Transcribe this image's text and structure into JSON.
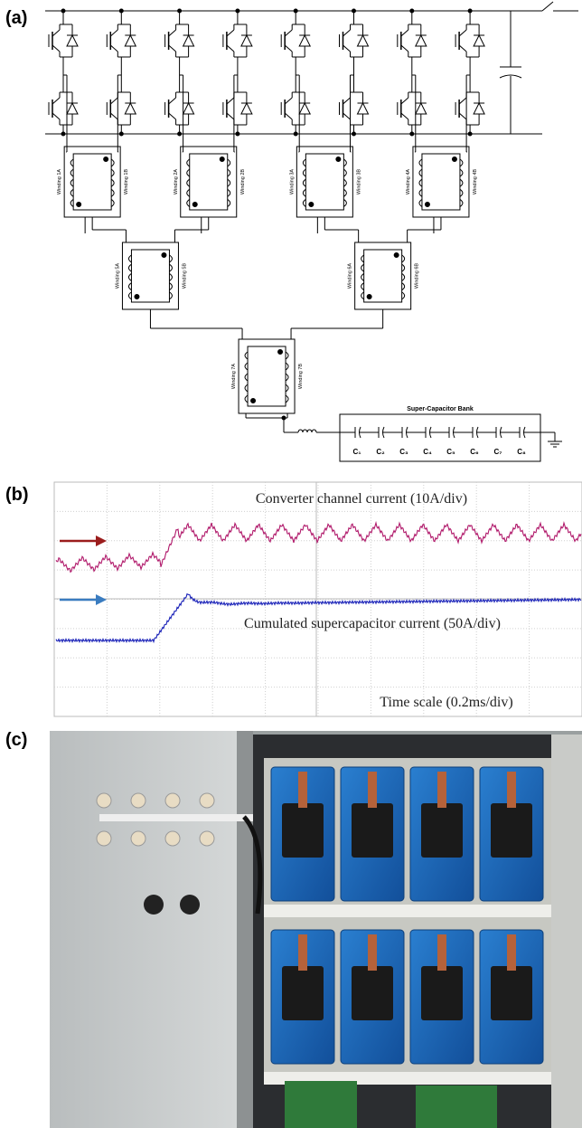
{
  "panels": [
    {
      "label": "(a)"
    },
    {
      "label": "(b)"
    },
    {
      "label": "(c)"
    }
  ],
  "diagram": {
    "windings": [
      {
        "a": "Winding 1A",
        "b": "Winding 1B"
      },
      {
        "a": "Winding 2A",
        "b": "Winding 2B"
      },
      {
        "a": "Winding 3A",
        "b": "Winding 3B"
      },
      {
        "a": "Winding 4A",
        "b": "Winding 4B"
      },
      {
        "a": "Winding 5A",
        "b": "Winding 5B"
      },
      {
        "a": "Winding 6A",
        "b": "Winding 6B"
      },
      {
        "a": "Winding 7A",
        "b": "Winding 7B"
      }
    ],
    "bank_title": "Super-Capacitor Bank",
    "capacitors": [
      "C₁",
      "C₂",
      "C₃",
      "C₄",
      "C₅",
      "C₆",
      "C₇",
      "C₈"
    ]
  },
  "scope": {
    "trace1_label": "Converter channel current (10A/div)",
    "trace2_label": "Cumulated supercapacitor current (50A/div)",
    "time_label": "Time scale (0.2ms/div)"
  }
}
